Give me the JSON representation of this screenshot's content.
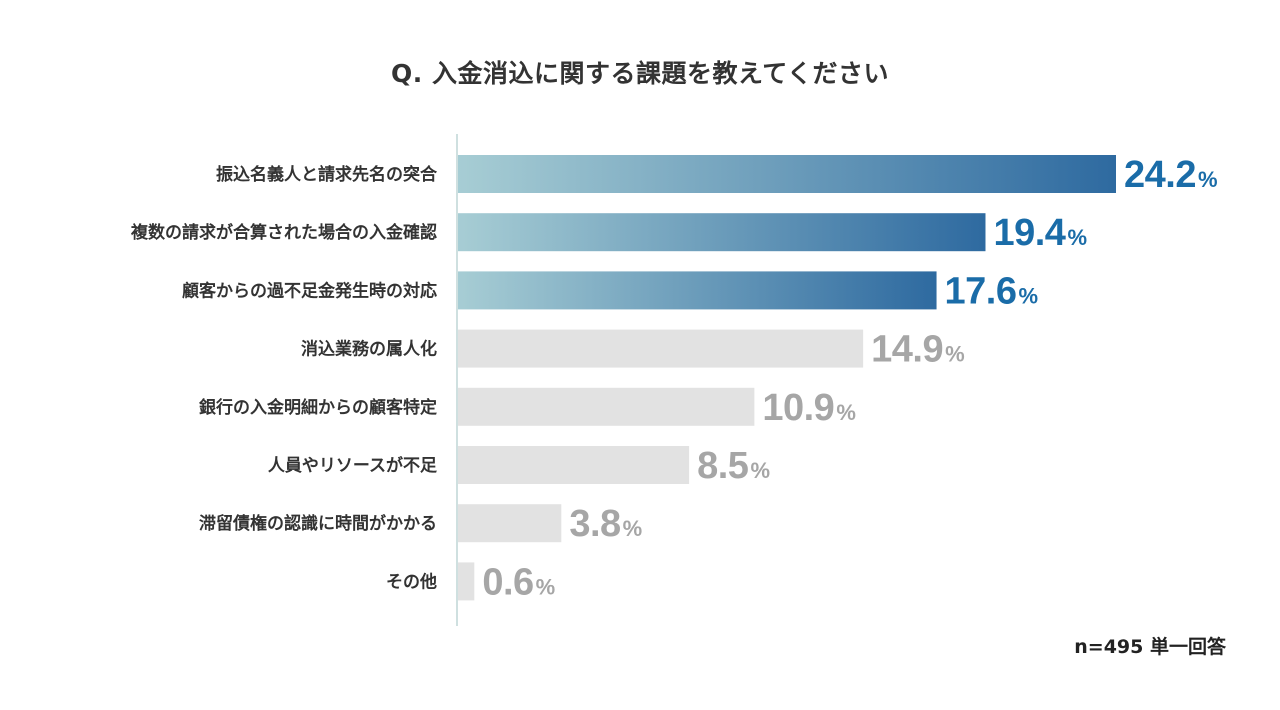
{
  "title": "Q. 入金消込に関する課題を教えてください",
  "note": "n=495 単一回答",
  "colors": {
    "highlight_start": "#a7cdd4",
    "highlight_end": "#2e6aa0",
    "highlight_text": "#1a6ca8",
    "muted_bar": "#e2e2e2",
    "muted_text": "#a6a6a6",
    "axis_line": "#cfe0e0"
  },
  "chart_data": {
    "type": "bar",
    "orientation": "horizontal",
    "unit": "%",
    "grid": false,
    "legend": "none",
    "xlim": [
      0,
      24.2
    ],
    "categories": [
      "振込名義人と請求先名の突合",
      "複数の請求が合算された場合の入金確認",
      "顧客からの過不足金発生時の対応",
      "消込業務の属人化",
      "銀行の入金明細からの顧客特定",
      "人員やリソースが不足",
      "滞留債権の認識に時間がかかる",
      "その他"
    ],
    "values": [
      24.2,
      19.4,
      17.6,
      14.9,
      10.9,
      8.5,
      3.8,
      0.6
    ],
    "value_labels": [
      "24.2",
      "19.4",
      "17.6",
      "14.9",
      "10.9",
      "8.5",
      "3.8",
      "0.6"
    ],
    "highlighted": [
      true,
      true,
      true,
      false,
      false,
      false,
      false,
      false
    ]
  }
}
